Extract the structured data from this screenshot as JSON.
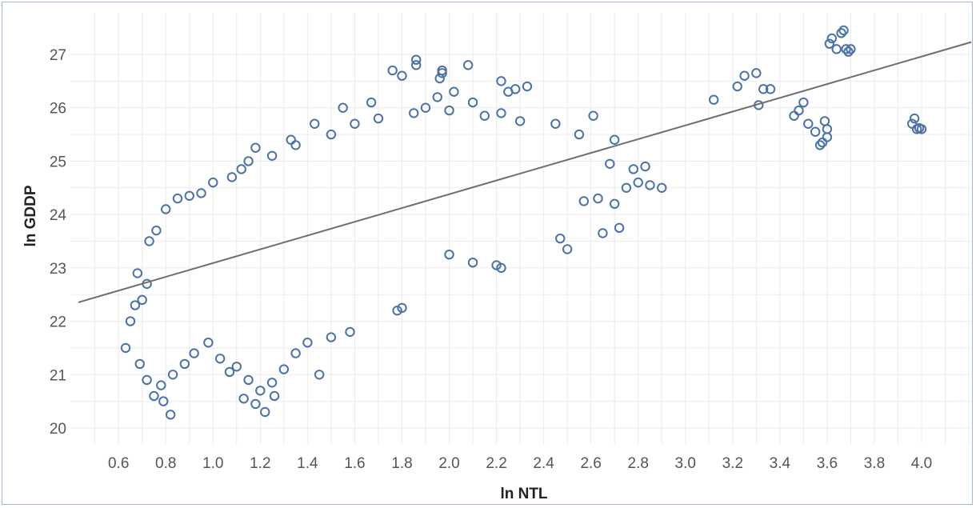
{
  "chart_data": {
    "type": "scatter",
    "title": "",
    "xlabel": "ln NTL",
    "ylabel": "ln GDDP",
    "xlim": [
      0.43,
      4.21
    ],
    "ylim": [
      19.7,
      27.48
    ],
    "x_ticks": [
      0.6,
      0.8,
      1.0,
      1.2,
      1.4,
      1.6,
      1.8,
      2.0,
      2.2,
      2.4,
      2.6,
      2.8,
      3.0,
      3.2,
      3.4,
      3.6,
      3.8,
      4.0
    ],
    "x_tick_labels": [
      "0.6",
      "0.8",
      "1.0",
      "1.2",
      "1.4",
      "1.6",
      "1.8",
      "2.0",
      "2.2",
      "2.4",
      "2.6",
      "2.8",
      "3.0",
      "3.2",
      "3.4",
      "3.6",
      "3.8",
      "4.0"
    ],
    "y_ticks": [
      20,
      21,
      22,
      23,
      24,
      25,
      26,
      27
    ],
    "y_tick_labels": [
      "20",
      "21",
      "22",
      "23",
      "24",
      "25",
      "26",
      "27"
    ],
    "grid": true,
    "legend": "none",
    "marker": "hollow-circle",
    "colors": {
      "points": "#4a72a8",
      "trend_line": "#6e6e6e",
      "grid": "#ebebeb",
      "frame": "#9fb8d6"
    },
    "trend_line": {
      "slope": 1.29,
      "intercept": 21.8,
      "x_range": [
        0.43,
        4.21
      ]
    },
    "series": [
      {
        "points": [
          [
            1.18,
            25.25
          ],
          [
            1.33,
            25.4
          ],
          [
            1.43,
            25.7
          ],
          [
            1.55,
            26.0
          ],
          [
            1.67,
            26.1
          ],
          [
            1.76,
            26.7
          ],
          [
            1.8,
            26.6
          ],
          [
            1.86,
            26.9
          ],
          [
            1.86,
            26.8
          ],
          [
            1.97,
            26.7
          ],
          [
            1.97,
            26.65
          ],
          [
            2.08,
            26.8
          ],
          [
            2.02,
            26.3
          ],
          [
            1.95,
            26.2
          ],
          [
            2.22,
            26.5
          ],
          [
            2.25,
            26.3
          ],
          [
            2.33,
            26.4
          ],
          [
            2.28,
            26.35
          ],
          [
            2.61,
            25.85
          ],
          [
            2.22,
            25.9
          ],
          [
            1.96,
            26.55
          ],
          [
            2.1,
            26.1
          ],
          [
            1.78,
            22.2
          ],
          [
            1.8,
            22.25
          ],
          [
            1.45,
            21.0
          ],
          [
            0.63,
            21.5
          ],
          [
            0.82,
            20.25
          ],
          [
            0.79,
            20.5
          ],
          [
            1.22,
            20.3
          ],
          [
            1.18,
            20.45
          ],
          [
            1.13,
            20.55
          ],
          [
            1.26,
            20.6
          ],
          [
            1.1,
            21.15
          ],
          [
            3.12,
            26.15
          ],
          [
            3.22,
            26.4
          ],
          [
            3.25,
            26.6
          ],
          [
            3.3,
            26.65
          ],
          [
            3.31,
            26.05
          ],
          [
            3.33,
            26.35
          ],
          [
            3.36,
            26.35
          ],
          [
            3.46,
            25.85
          ],
          [
            3.48,
            25.95
          ],
          [
            3.5,
            26.1
          ],
          [
            3.52,
            25.7
          ],
          [
            3.55,
            25.55
          ],
          [
            3.57,
            25.3
          ],
          [
            3.6,
            25.45
          ],
          [
            3.59,
            25.75
          ],
          [
            3.6,
            25.6
          ],
          [
            3.58,
            25.35
          ],
          [
            3.61,
            27.2
          ],
          [
            3.62,
            27.3
          ],
          [
            3.64,
            27.1
          ],
          [
            3.66,
            27.4
          ],
          [
            3.67,
            27.45
          ],
          [
            3.68,
            27.1
          ],
          [
            3.69,
            27.05
          ],
          [
            3.7,
            27.1
          ],
          [
            3.96,
            25.7
          ],
          [
            3.97,
            25.8
          ],
          [
            3.98,
            25.6
          ],
          [
            3.99,
            25.62
          ],
          [
            4.0,
            25.6
          ],
          [
            2.57,
            24.25
          ],
          [
            2.63,
            24.3
          ],
          [
            2.7,
            24.2
          ],
          [
            2.72,
            23.75
          ],
          [
            2.75,
            24.5
          ],
          [
            2.8,
            24.6
          ],
          [
            2.85,
            24.55
          ],
          [
            2.9,
            24.5
          ],
          [
            2.78,
            24.85
          ],
          [
            2.83,
            24.9
          ],
          [
            2.68,
            24.95
          ],
          [
            2.65,
            23.65
          ],
          [
            2.5,
            23.35
          ],
          [
            2.47,
            23.55
          ],
          [
            2.2,
            23.05
          ],
          [
            2.22,
            23.0
          ],
          [
            2.1,
            23.1
          ],
          [
            2.0,
            23.25
          ],
          [
            0.65,
            22.0
          ],
          [
            0.67,
            22.3
          ],
          [
            0.7,
            22.4
          ],
          [
            0.72,
            22.7
          ],
          [
            0.68,
            22.9
          ],
          [
            0.73,
            23.5
          ],
          [
            0.76,
            23.7
          ],
          [
            0.8,
            24.1
          ],
          [
            0.85,
            24.3
          ],
          [
            0.9,
            24.35
          ],
          [
            0.95,
            24.4
          ],
          [
            1.0,
            24.6
          ],
          [
            1.08,
            24.7
          ],
          [
            1.12,
            24.85
          ],
          [
            1.15,
            25.0
          ],
          [
            1.25,
            25.1
          ],
          [
            1.35,
            25.3
          ],
          [
            1.5,
            25.5
          ],
          [
            1.6,
            25.7
          ],
          [
            1.7,
            25.8
          ],
          [
            1.85,
            25.9
          ],
          [
            1.9,
            26.0
          ],
          [
            2.0,
            25.95
          ],
          [
            2.15,
            25.85
          ],
          [
            2.3,
            25.75
          ],
          [
            2.45,
            25.7
          ],
          [
            2.55,
            25.5
          ],
          [
            2.7,
            25.4
          ],
          [
            0.69,
            21.2
          ],
          [
            0.72,
            20.9
          ],
          [
            0.75,
            20.6
          ],
          [
            0.78,
            20.8
          ],
          [
            0.83,
            21.0
          ],
          [
            0.88,
            21.2
          ],
          [
            0.92,
            21.4
          ],
          [
            0.98,
            21.6
          ],
          [
            1.03,
            21.3
          ],
          [
            1.07,
            21.05
          ],
          [
            1.15,
            20.9
          ],
          [
            1.2,
            20.7
          ],
          [
            1.25,
            20.85
          ],
          [
            1.3,
            21.1
          ],
          [
            1.35,
            21.4
          ],
          [
            1.4,
            21.6
          ],
          [
            1.5,
            21.7
          ],
          [
            1.58,
            21.8
          ]
        ]
      }
    ]
  }
}
